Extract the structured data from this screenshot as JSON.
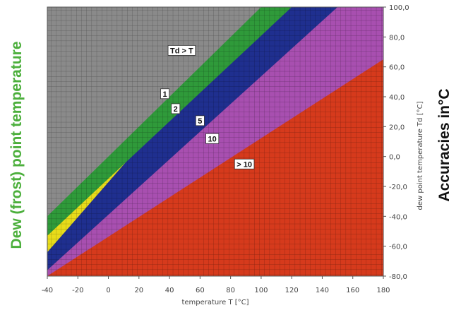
{
  "chart_data": {
    "type": "heatmap",
    "title": "",
    "xlabel": "temperature T [°C]",
    "ylabel": "dew point temperature Td [°C]",
    "left_title": "Dew (frost) point temperature",
    "right_title": "Accuracies in°C",
    "xlim": [
      -40,
      180
    ],
    "ylim": [
      -80,
      100
    ],
    "x_ticks": [
      "-40",
      "-20",
      "0",
      "20",
      "40",
      "60",
      "80",
      "100",
      "120",
      "140",
      "160",
      "180"
    ],
    "y_ticks": [
      "100,0",
      "80,0",
      "60,0",
      "40,0",
      "20,0",
      "0,0",
      "-20,0",
      "-40,0",
      "-60,0",
      "-80,0"
    ],
    "y_tick_values": [
      100,
      80,
      60,
      40,
      20,
      0,
      -20,
      -40,
      -60,
      -80
    ],
    "grid": true,
    "zones": [
      {
        "label": "Td > T",
        "color": "#8a8a8a",
        "upper_boundary_at_x_minus40": 100,
        "lower_boundary": [
          [
            -40,
            -40
          ],
          [
            140,
            140
          ]
        ]
      },
      {
        "label": "1",
        "color": "#2f9a3a",
        "lower_boundary": [
          [
            -40,
            -53
          ],
          [
            120,
            100
          ]
        ]
      },
      {
        "label": "2",
        "color": "#e8dc1a",
        "lower_boundary": [
          [
            -40,
            -64
          ],
          [
            100,
            100
          ]
        ]
      },
      {
        "label": "5",
        "color": "#1f2f8f",
        "lower_boundary": [
          [
            -40,
            -76
          ],
          [
            150,
            100
          ]
        ]
      },
      {
        "label": "10",
        "color": "#a84fb0",
        "lower_boundary": [
          [
            -40,
            -80
          ],
          [
            180,
            65
          ]
        ]
      },
      {
        "label": "> 10",
        "color": "#d63a1c"
      }
    ],
    "colors": {
      "left_title": "#4caf3c",
      "right_title": "#111111"
    }
  }
}
